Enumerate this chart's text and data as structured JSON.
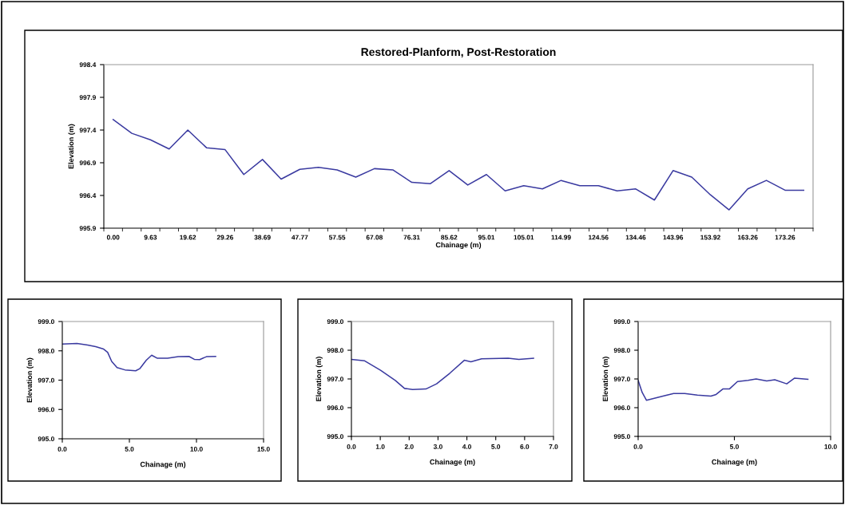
{
  "chart_data": [
    {
      "type": "line",
      "title": "Restored-Planform, Post-Restoration",
      "xlabel": "Chainage (m)",
      "ylabel": "Elevation (m)",
      "categories": [
        "0.00",
        null,
        "9.63",
        null,
        "19.62",
        null,
        "29.26",
        null,
        "38.69",
        null,
        "47.77",
        null,
        "57.55",
        null,
        "67.08",
        null,
        "76.31",
        null,
        "85.62",
        null,
        "95.01",
        null,
        "105.01",
        null,
        "114.99",
        null,
        "124.56",
        null,
        "134.46",
        null,
        "143.96",
        null,
        "153.92",
        null,
        "163.26",
        null,
        "173.26",
        null
      ],
      "series": [
        {
          "color": "#3a3aa0",
          "values": [
            997.56,
            997.35,
            997.25,
            997.11,
            997.4,
            997.13,
            997.1,
            996.72,
            996.95,
            996.65,
            996.8,
            996.83,
            996.79,
            996.68,
            996.81,
            996.79,
            996.6,
            996.58,
            996.78,
            996.56,
            996.72,
            996.47,
            996.55,
            996.5,
            996.63,
            996.55,
            996.55,
            996.47,
            996.5,
            996.33,
            996.78,
            996.68,
            996.41,
            996.18,
            996.5,
            996.63,
            996.48,
            996.48
          ]
        }
      ],
      "ylim": [
        995.9,
        998.4
      ],
      "yticks": [
        {
          "value": 995.9,
          "label": "995.9"
        },
        {
          "value": 996.4,
          "label": "996.4"
        },
        {
          "value": 996.9,
          "label": "996.9"
        },
        {
          "value": 997.4,
          "label": "997.4"
        },
        {
          "value": 997.9,
          "label": "997.9"
        },
        {
          "value": 998.4,
          "label": "998.4"
        }
      ]
    },
    {
      "type": "line",
      "xlabel": "Chainage (m)",
      "ylabel": "Elevation (m)",
      "series": [
        {
          "color": "#3a3aa0",
          "x": [
            0,
            1.09,
            1.89,
            2.49,
            3.08,
            3.38,
            3.68,
            4.08,
            4.67,
            5.47,
            5.77,
            6.26,
            6.66,
            7.06,
            7.85,
            8.65,
            9.44,
            9.84,
            10.24,
            10.74,
            11.43
          ],
          "values": [
            998.23,
            998.25,
            998.2,
            998.14,
            998.06,
            997.95,
            997.64,
            997.43,
            997.35,
            997.32,
            997.39,
            997.68,
            997.85,
            997.75,
            997.75,
            997.8,
            997.81,
            997.71,
            997.7,
            997.8,
            997.81
          ]
        }
      ],
      "xlim": [
        0,
        15
      ],
      "xticks": [
        {
          "value": 0,
          "label": "0.0"
        },
        {
          "value": 5,
          "label": "5.0"
        },
        {
          "value": 10,
          "label": "10.0"
        },
        {
          "value": 15,
          "label": "15.0"
        }
      ],
      "ylim": [
        995,
        999
      ],
      "yticks": [
        {
          "value": 995,
          "label": "995.0"
        },
        {
          "value": 996,
          "label": "996.0"
        },
        {
          "value": 997,
          "label": "997.0"
        },
        {
          "value": 998,
          "label": "998.0"
        },
        {
          "value": 999,
          "label": "999.0"
        }
      ]
    },
    {
      "type": "line",
      "xlabel": "Chainage (m)",
      "ylabel": "Elevation (m)",
      "series": [
        {
          "color": "#3a3aa0",
          "x": [
            0,
            0.46,
            1.01,
            1.52,
            1.84,
            2.12,
            2.58,
            2.95,
            3.41,
            3.91,
            4.14,
            4.51,
            5.43,
            5.8,
            6.31
          ],
          "values": [
            997.68,
            997.63,
            997.3,
            996.95,
            996.67,
            996.63,
            996.65,
            996.83,
            997.2,
            997.65,
            997.6,
            997.7,
            997.72,
            997.68,
            997.72
          ]
        }
      ],
      "xlim": [
        0,
        7
      ],
      "xticks": [
        {
          "value": 0,
          "label": "0.0"
        },
        {
          "value": 1,
          "label": "1.0"
        },
        {
          "value": 2,
          "label": "2.0"
        },
        {
          "value": 3,
          "label": "3.0"
        },
        {
          "value": 4,
          "label": "4.0"
        },
        {
          "value": 5,
          "label": "5.0"
        },
        {
          "value": 6,
          "label": "6.0"
        },
        {
          "value": 7,
          "label": "7.0"
        }
      ],
      "ylim": [
        995,
        999
      ],
      "yticks": [
        {
          "value": 995,
          "label": "995.0"
        },
        {
          "value": 996,
          "label": "996.0"
        },
        {
          "value": 997,
          "label": "997.0"
        },
        {
          "value": 998,
          "label": "998.0"
        },
        {
          "value": 999,
          "label": "999.0"
        }
      ]
    },
    {
      "type": "line",
      "xlabel": "Chainage (m)",
      "ylabel": "Elevation (m)",
      "series": [
        {
          "color": "#3a3aa0",
          "x": [
            0,
            0.21,
            0.43,
            1.29,
            1.84,
            2.42,
            3.08,
            3.78,
            4.05,
            4.4,
            4.74,
            5.16,
            5.71,
            6.13,
            6.68,
            7.1,
            7.72,
            8.13,
            8.82
          ],
          "values": [
            996.95,
            996.53,
            996.26,
            996.4,
            996.49,
            996.49,
            996.44,
            996.4,
            996.46,
            996.65,
            996.65,
            996.91,
            996.95,
            997.0,
            996.93,
            996.97,
            996.83,
            997.03,
            996.99
          ]
        }
      ],
      "xlim": [
        0,
        10
      ],
      "xticks": [
        {
          "value": 0,
          "label": "0.0"
        },
        {
          "value": 5,
          "label": "5.0"
        },
        {
          "value": 10,
          "label": "10.0"
        }
      ],
      "ylim": [
        995,
        999
      ],
      "yticks": [
        {
          "value": 995,
          "label": "995.0"
        },
        {
          "value": 996,
          "label": "996.0"
        },
        {
          "value": 997,
          "label": "997.0"
        },
        {
          "value": 998,
          "label": "998.0"
        },
        {
          "value": 999,
          "label": "999.0"
        }
      ]
    }
  ]
}
